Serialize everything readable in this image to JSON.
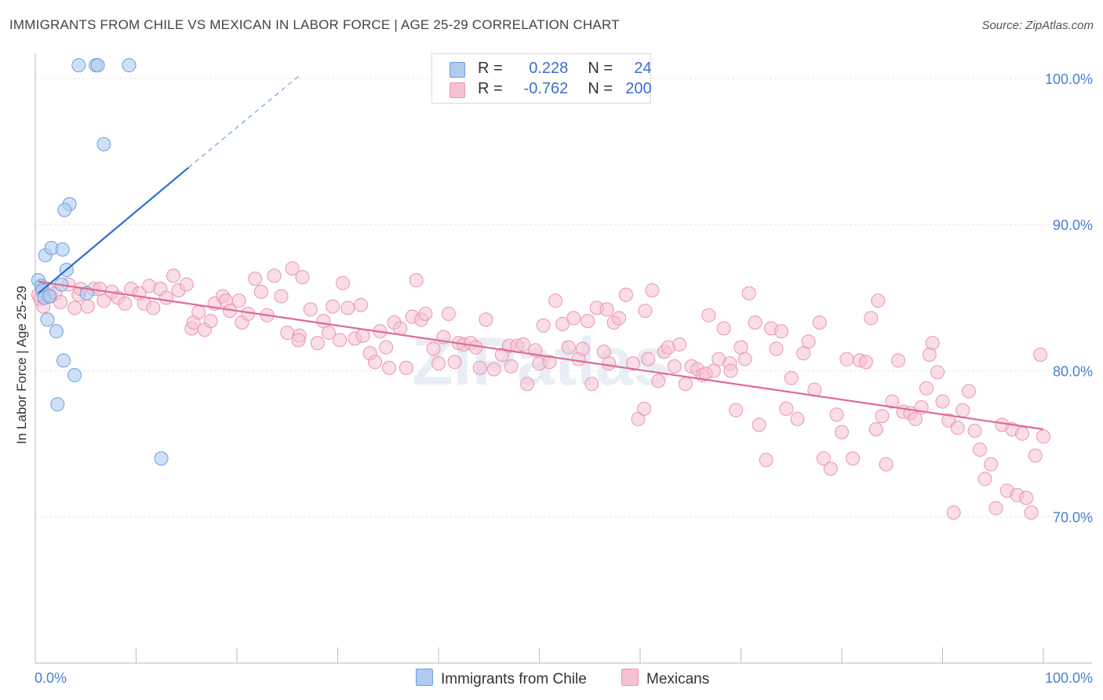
{
  "title": "IMMIGRANTS FROM CHILE VS MEXICAN IN LABOR FORCE | AGE 25-29 CORRELATION CHART",
  "source": "Source: ZipAtlas.com",
  "watermark": "ZIPatlas",
  "colors": {
    "blue_fill": "#aecbf0",
    "blue_stroke": "#6d9ee0",
    "blue_line": "#2a6fd0",
    "pink_fill": "#f6c1d2",
    "pink_stroke": "#e995b2",
    "pink_line": "#e06a96",
    "axis_text": "#4a7fd4",
    "grid": "#e6e6e6"
  },
  "legend": {
    "rows": [
      {
        "r_label": "R =",
        "r_value": "0.228",
        "n_label": "N =",
        "n_value": "24"
      },
      {
        "r_label": "R =",
        "r_value": "-0.762",
        "n_label": "N =",
        "n_value": "200"
      }
    ]
  },
  "bottom_legend": {
    "series1": "Immigrants from Chile",
    "series2": "Mexicans"
  },
  "chart_data": {
    "type": "scatter",
    "title": "IMMIGRANTS FROM CHILE VS MEXICAN IN LABOR FORCE | AGE 25-29 CORRELATION CHART",
    "xlabel": "",
    "ylabel": "In Labor Force | Age 25-29",
    "xlim": [
      0,
      100
    ],
    "ylim": [
      60,
      101.5
    ],
    "x_tick_labels": [
      "0.0%",
      "100.0%"
    ],
    "y_ticks": [
      70,
      80,
      90,
      100
    ],
    "y_tick_labels": [
      "70.0%",
      "80.0%",
      "90.0%",
      "100.0%"
    ],
    "series": [
      {
        "name": "Immigrants from Chile",
        "r": 0.228,
        "n": 24,
        "trend": {
          "x0": 0.3,
          "y0": 85.3,
          "x1": 15.2,
          "y1": 93.9,
          "dash_x1": 26.2,
          "dash_y1": 100.2
        },
        "points": [
          [
            4.3,
            100.9
          ],
          [
            6.0,
            100.9
          ],
          [
            6.2,
            100.9
          ],
          [
            9.3,
            100.9
          ],
          [
            6.8,
            95.5
          ],
          [
            3.4,
            91.4
          ],
          [
            2.9,
            91.0
          ],
          [
            1.0,
            87.9
          ],
          [
            1.6,
            88.4
          ],
          [
            2.7,
            88.3
          ],
          [
            3.1,
            86.9
          ],
          [
            0.3,
            86.2
          ],
          [
            0.6,
            85.8
          ],
          [
            2.6,
            85.9
          ],
          [
            0.7,
            85.5
          ],
          [
            5.1,
            85.3
          ],
          [
            0.9,
            85.0
          ],
          [
            1.4,
            85.1
          ],
          [
            1.2,
            83.5
          ],
          [
            2.1,
            82.7
          ],
          [
            2.8,
            80.7
          ],
          [
            3.9,
            79.7
          ],
          [
            2.2,
            77.7
          ],
          [
            12.5,
            74.0
          ]
        ]
      },
      {
        "name": "Mexicans",
        "r": -0.762,
        "n": 200,
        "trend": {
          "x0": 0.3,
          "y0": 86.1,
          "x1": 100,
          "y1": 76.0
        },
        "points": [
          [
            0.3,
            85.2
          ],
          [
            0.5,
            84.9
          ],
          [
            0.8,
            84.4
          ],
          [
            1.2,
            85.6
          ],
          [
            1.5,
            85.1
          ],
          [
            2.0,
            85.3
          ],
          [
            2.5,
            84.7
          ],
          [
            3.3,
            85.9
          ],
          [
            3.9,
            84.3
          ],
          [
            4.3,
            85.2
          ],
          [
            4.5,
            85.6
          ],
          [
            5.2,
            84.4
          ],
          [
            5.8,
            85.6
          ],
          [
            6.4,
            85.6
          ],
          [
            6.8,
            84.8
          ],
          [
            7.6,
            85.4
          ],
          [
            8.2,
            85.0
          ],
          [
            8.9,
            84.6
          ],
          [
            9.5,
            85.6
          ],
          [
            10.3,
            85.3
          ],
          [
            10.8,
            84.6
          ],
          [
            11.3,
            85.8
          ],
          [
            11.7,
            84.3
          ],
          [
            12.4,
            85.6
          ],
          [
            13.0,
            85.0
          ],
          [
            13.7,
            86.5
          ],
          [
            14.2,
            85.5
          ],
          [
            15.0,
            85.9
          ],
          [
            15.5,
            82.9
          ],
          [
            15.7,
            83.3
          ],
          [
            16.2,
            84.0
          ],
          [
            16.8,
            82.8
          ],
          [
            17.4,
            83.4
          ],
          [
            17.8,
            84.6
          ],
          [
            18.6,
            85.1
          ],
          [
            18.9,
            84.8
          ],
          [
            19.3,
            84.1
          ],
          [
            20.2,
            84.8
          ],
          [
            20.5,
            83.3
          ],
          [
            21.1,
            83.9
          ],
          [
            21.8,
            86.3
          ],
          [
            22.4,
            85.4
          ],
          [
            23.0,
            83.8
          ],
          [
            23.7,
            86.5
          ],
          [
            24.4,
            85.1
          ],
          [
            25.0,
            82.6
          ],
          [
            25.5,
            87.0
          ],
          [
            26.2,
            82.4
          ],
          [
            26.1,
            82.1
          ],
          [
            26.5,
            86.4
          ],
          [
            27.3,
            84.2
          ],
          [
            28.0,
            81.9
          ],
          [
            28.6,
            83.4
          ],
          [
            29.1,
            82.6
          ],
          [
            29.5,
            84.4
          ],
          [
            30.2,
            82.1
          ],
          [
            30.5,
            86.0
          ],
          [
            31.0,
            84.3
          ],
          [
            31.7,
            82.2
          ],
          [
            32.3,
            84.5
          ],
          [
            32.5,
            82.4
          ],
          [
            33.2,
            81.2
          ],
          [
            33.7,
            80.6
          ],
          [
            34.2,
            82.7
          ],
          [
            34.8,
            81.6
          ],
          [
            35.1,
            80.2
          ],
          [
            35.6,
            83.3
          ],
          [
            36.2,
            82.9
          ],
          [
            36.8,
            80.2
          ],
          [
            37.4,
            83.7
          ],
          [
            37.8,
            86.2
          ],
          [
            38.3,
            83.5
          ],
          [
            38.7,
            83.9
          ],
          [
            39.5,
            81.5
          ],
          [
            40.0,
            80.5
          ],
          [
            40.5,
            82.3
          ],
          [
            41.0,
            83.9
          ],
          [
            41.6,
            80.6
          ],
          [
            42.0,
            81.9
          ],
          [
            42.5,
            81.8
          ],
          [
            43.2,
            81.9
          ],
          [
            43.7,
            81.6
          ],
          [
            44.1,
            80.2
          ],
          [
            44.7,
            83.5
          ],
          [
            45.5,
            80.1
          ],
          [
            46.3,
            81.1
          ],
          [
            47.0,
            81.7
          ],
          [
            47.2,
            80.3
          ],
          [
            47.8,
            81.7
          ],
          [
            48.4,
            81.8
          ],
          [
            48.8,
            79.1
          ],
          [
            49.6,
            81.4
          ],
          [
            50.0,
            80.5
          ],
          [
            50.4,
            83.1
          ],
          [
            51.0,
            80.6
          ],
          [
            51.6,
            84.8
          ],
          [
            52.3,
            83.2
          ],
          [
            52.9,
            81.6
          ],
          [
            53.4,
            83.6
          ],
          [
            53.9,
            80.8
          ],
          [
            54.3,
            81.5
          ],
          [
            54.8,
            83.4
          ],
          [
            55.2,
            79.1
          ],
          [
            55.7,
            84.3
          ],
          [
            56.4,
            81.3
          ],
          [
            56.7,
            84.2
          ],
          [
            56.9,
            80.5
          ],
          [
            57.4,
            83.3
          ],
          [
            57.9,
            83.6
          ],
          [
            58.6,
            85.2
          ],
          [
            59.3,
            80.5
          ],
          [
            59.8,
            76.7
          ],
          [
            60.4,
            77.4
          ],
          [
            60.8,
            80.8
          ],
          [
            61.2,
            85.5
          ],
          [
            61.8,
            79.3
          ],
          [
            62.4,
            81.3
          ],
          [
            62.8,
            81.6
          ],
          [
            63.4,
            80.3
          ],
          [
            63.9,
            81.8
          ],
          [
            64.5,
            79.1
          ],
          [
            65.1,
            80.3
          ],
          [
            65.7,
            80.1
          ],
          [
            66.2,
            79.7
          ],
          [
            66.8,
            83.8
          ],
          [
            67.3,
            80.0
          ],
          [
            67.8,
            80.8
          ],
          [
            68.3,
            82.9
          ],
          [
            68.9,
            80.5
          ],
          [
            69.5,
            77.3
          ],
          [
            70.0,
            81.6
          ],
          [
            70.4,
            80.8
          ],
          [
            70.8,
            85.3
          ],
          [
            71.4,
            83.3
          ],
          [
            71.8,
            76.3
          ],
          [
            72.5,
            73.9
          ],
          [
            73.0,
            82.9
          ],
          [
            73.5,
            81.5
          ],
          [
            74.0,
            82.7
          ],
          [
            74.5,
            77.4
          ],
          [
            75.0,
            79.5
          ],
          [
            75.6,
            76.7
          ],
          [
            76.2,
            81.2
          ],
          [
            76.7,
            82.0
          ],
          [
            77.3,
            78.7
          ],
          [
            77.8,
            83.3
          ],
          [
            78.2,
            74.0
          ],
          [
            78.9,
            73.3
          ],
          [
            79.5,
            77.0
          ],
          [
            80.0,
            75.8
          ],
          [
            80.5,
            80.8
          ],
          [
            81.1,
            74.0
          ],
          [
            81.8,
            80.7
          ],
          [
            82.4,
            80.6
          ],
          [
            82.9,
            83.6
          ],
          [
            83.4,
            76.0
          ],
          [
            84.0,
            76.9
          ],
          [
            84.4,
            73.6
          ],
          [
            85.0,
            77.9
          ],
          [
            85.6,
            80.7
          ],
          [
            86.1,
            77.2
          ],
          [
            86.8,
            77.1
          ],
          [
            87.3,
            76.7
          ],
          [
            87.9,
            77.5
          ],
          [
            88.4,
            78.8
          ],
          [
            89.0,
            81.9
          ],
          [
            89.5,
            79.9
          ],
          [
            90.0,
            77.9
          ],
          [
            90.6,
            76.6
          ],
          [
            91.1,
            70.3
          ],
          [
            91.5,
            76.1
          ],
          [
            92.0,
            77.3
          ],
          [
            92.6,
            78.6
          ],
          [
            93.2,
            75.9
          ],
          [
            93.7,
            74.6
          ],
          [
            94.2,
            72.6
          ],
          [
            94.8,
            73.6
          ],
          [
            95.3,
            70.6
          ],
          [
            95.9,
            76.3
          ],
          [
            96.4,
            71.8
          ],
          [
            96.9,
            76.0
          ],
          [
            97.4,
            71.5
          ],
          [
            97.9,
            75.7
          ],
          [
            98.3,
            71.3
          ],
          [
            98.8,
            70.3
          ],
          [
            99.2,
            74.2
          ],
          [
            99.7,
            81.1
          ],
          [
            100.0,
            75.5
          ],
          [
            69.0,
            80.0
          ],
          [
            60.5,
            84.1
          ],
          [
            66.5,
            79.8
          ],
          [
            88.7,
            81.1
          ],
          [
            83.6,
            84.8
          ]
        ]
      }
    ]
  }
}
